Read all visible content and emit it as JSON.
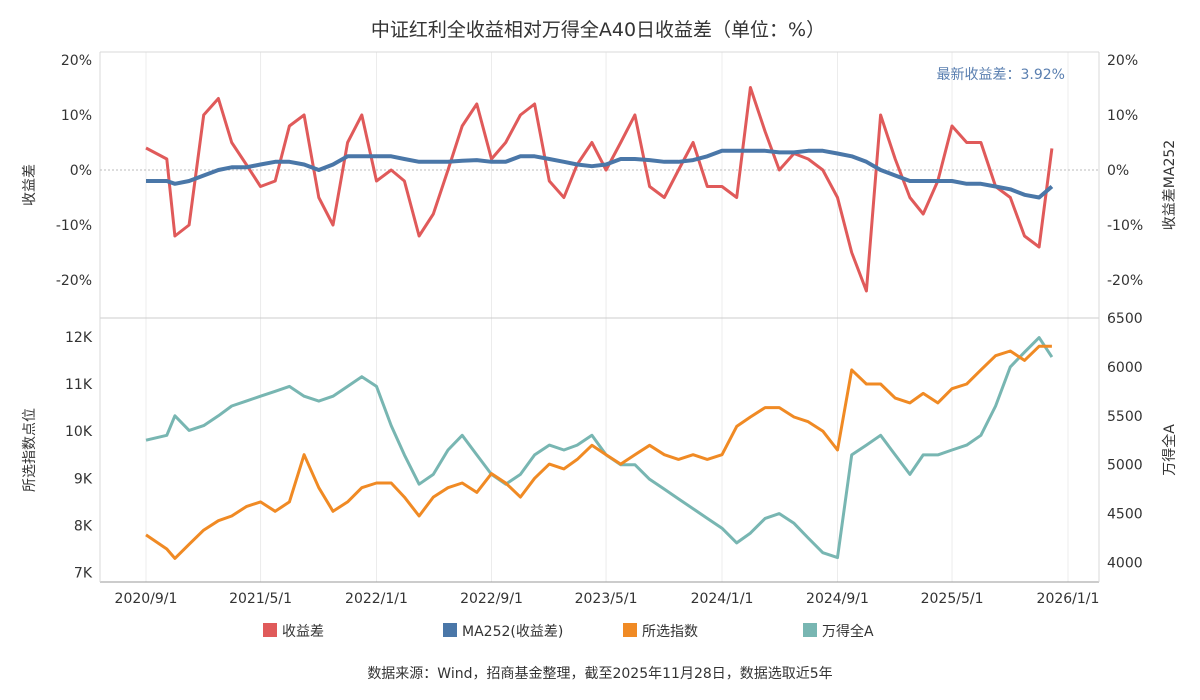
{
  "title": "中证红利全收益相对万得全A40日收益差（单位：%）",
  "footnote": "数据来源：Wind，招商基金整理，截至2025年11月28日，数据选取近5年",
  "annotation": "最新收益差：3.92%",
  "colors": {
    "spread": "#e05a5a",
    "ma": "#4a77a8",
    "index": "#f08a24",
    "wind": "#78b6b2",
    "annotation": "#5a7fb0"
  },
  "legend": [
    "收益差",
    "MA252(收益差)",
    "所选指数",
    "万得全A"
  ],
  "chart_data": [
    {
      "type": "line",
      "panel": "top",
      "ylabel_left": "收益差",
      "ylabel_right": "收益差MA252",
      "ylim": [
        -25,
        21
      ],
      "yticks": [
        20,
        10,
        0,
        -10,
        -20
      ],
      "ytick_labels": [
        "20%",
        "10%",
        "0%",
        "-10%",
        "-20%"
      ],
      "x_dates": [
        "2020-09-01",
        "2020-10-15",
        "2020-11-01",
        "2020-12-01",
        "2021-01-01",
        "2021-02-01",
        "2021-03-01",
        "2021-04-01",
        "2021-05-01",
        "2021-06-01",
        "2021-07-01",
        "2021-08-01",
        "2021-09-01",
        "2021-10-01",
        "2021-11-01",
        "2021-12-01",
        "2022-01-01",
        "2022-02-01",
        "2022-03-01",
        "2022-04-01",
        "2022-05-01",
        "2022-06-01",
        "2022-07-01",
        "2022-08-01",
        "2022-09-01",
        "2022-10-01",
        "2022-11-01",
        "2022-12-01",
        "2023-01-01",
        "2023-02-01",
        "2023-03-01",
        "2023-04-01",
        "2023-05-01",
        "2023-06-01",
        "2023-07-01",
        "2023-08-01",
        "2023-09-01",
        "2023-10-01",
        "2023-11-01",
        "2023-12-01",
        "2024-01-01",
        "2024-02-01",
        "2024-03-01",
        "2024-04-01",
        "2024-05-01",
        "2024-06-01",
        "2024-07-01",
        "2024-08-01",
        "2024-09-01",
        "2024-10-01",
        "2024-11-01",
        "2024-12-01",
        "2025-01-01",
        "2025-02-01",
        "2025-03-01",
        "2025-04-01",
        "2025-05-01",
        "2025-06-01",
        "2025-07-01",
        "2025-08-01",
        "2025-09-01",
        "2025-10-01",
        "2025-11-01",
        "2025-11-28"
      ],
      "series": [
        {
          "name": "收益差",
          "axis": "left",
          "values": [
            4,
            2,
            -12,
            -10,
            10,
            13,
            5,
            1,
            -3,
            -2,
            8,
            10,
            -5,
            -10,
            5,
            10,
            -2,
            0,
            -2,
            -12,
            -8,
            0,
            8,
            12,
            2,
            5,
            10,
            12,
            -2,
            -5,
            1,
            5,
            0,
            5,
            10,
            -3,
            -5,
            0,
            5,
            -3,
            -3,
            -5,
            15,
            7,
            0,
            3,
            2,
            0,
            -5,
            -15,
            -22,
            10,
            2,
            -5,
            -8,
            -2,
            8,
            5,
            5,
            -3,
            -5,
            -12,
            -14,
            3.92
          ]
        },
        {
          "name": "MA252(收益差)",
          "axis": "right",
          "values": [
            -2,
            -2,
            -2.5,
            -2,
            -1,
            0,
            0.5,
            0.5,
            1,
            1.5,
            1.5,
            1,
            0,
            1,
            2.5,
            2.5,
            2.5,
            2.5,
            2,
            1.5,
            1.5,
            1.5,
            1.7,
            1.8,
            1.5,
            1.5,
            2.5,
            2.5,
            2,
            1.5,
            1,
            0.7,
            1,
            2,
            2,
            1.8,
            1.5,
            1.5,
            1.8,
            2.5,
            3.5,
            3.5,
            3.5,
            3.5,
            3.2,
            3.2,
            3.5,
            3.5,
            3,
            2.5,
            1.5,
            0,
            -1,
            -2,
            -2,
            -2,
            -2,
            -2.5,
            -2.5,
            -3,
            -3.5,
            -4.5,
            -5,
            -3
          ]
        }
      ]
    },
    {
      "type": "line",
      "panel": "bottom",
      "ylabel_left": "所选指数点位",
      "ylabel_right": "万得全A",
      "ylim_left": [
        6800,
        12400
      ],
      "ylim_right": [
        3800,
        6500
      ],
      "yticks_left": [
        12000,
        11000,
        10000,
        9000,
        8000,
        7000
      ],
      "ytick_labels_left": [
        "12K",
        "11K",
        "10K",
        "9K",
        "8K",
        "7K"
      ],
      "yticks_right": [
        6500,
        6000,
        5500,
        5000,
        4500,
        4000
      ],
      "ytick_labels_right": [
        "6500",
        "6000",
        "5500",
        "5000",
        "4500",
        "4000"
      ],
      "xtick_labels": [
        "2020/9/1",
        "2021/5/1",
        "2022/1/1",
        "2022/9/1",
        "2023/5/1",
        "2024/1/1",
        "2024/9/1",
        "2025/5/1",
        "2026/1/1"
      ],
      "x_dates": [
        "2020-09-01",
        "2020-10-15",
        "2020-11-01",
        "2020-12-01",
        "2021-01-01",
        "2021-02-01",
        "2021-03-01",
        "2021-04-01",
        "2021-05-01",
        "2021-06-01",
        "2021-07-01",
        "2021-08-01",
        "2021-09-01",
        "2021-10-01",
        "2021-11-01",
        "2021-12-01",
        "2022-01-01",
        "2022-02-01",
        "2022-03-01",
        "2022-04-01",
        "2022-05-01",
        "2022-06-01",
        "2022-07-01",
        "2022-08-01",
        "2022-09-01",
        "2022-10-01",
        "2022-11-01",
        "2022-12-01",
        "2023-01-01",
        "2023-02-01",
        "2023-03-01",
        "2023-04-01",
        "2023-05-01",
        "2023-06-01",
        "2023-07-01",
        "2023-08-01",
        "2023-09-01",
        "2023-10-01",
        "2023-11-01",
        "2023-12-01",
        "2024-01-01",
        "2024-02-01",
        "2024-03-01",
        "2024-04-01",
        "2024-05-01",
        "2024-06-01",
        "2024-07-01",
        "2024-08-01",
        "2024-09-01",
        "2024-10-01",
        "2024-11-01",
        "2024-12-01",
        "2025-01-01",
        "2025-02-01",
        "2025-03-01",
        "2025-04-01",
        "2025-05-01",
        "2025-06-01",
        "2025-07-01",
        "2025-08-01",
        "2025-09-01",
        "2025-10-01",
        "2025-11-01",
        "2025-11-28"
      ],
      "series": [
        {
          "name": "所选指数",
          "axis": "left",
          "values": [
            7800,
            7500,
            7300,
            7600,
            7900,
            8100,
            8200,
            8400,
            8500,
            8300,
            8500,
            9500,
            8800,
            8300,
            8500,
            8800,
            8900,
            8900,
            8600,
            8200,
            8600,
            8800,
            8900,
            8700,
            9100,
            8900,
            8600,
            9000,
            9300,
            9200,
            9400,
            9700,
            9500,
            9300,
            9500,
            9700,
            9500,
            9400,
            9500,
            9400,
            9500,
            10100,
            10300,
            10500,
            10500,
            10300,
            10200,
            10000,
            9600,
            11300,
            11000,
            11000,
            10700,
            10600,
            10800,
            10600,
            10900,
            11000,
            11300,
            11600,
            11700,
            11500,
            11800,
            11800
          ]
        },
        {
          "name": "万得全A",
          "axis": "right",
          "values": [
            5250,
            5300,
            5500,
            5350,
            5400,
            5500,
            5600,
            5650,
            5700,
            5750,
            5800,
            5700,
            5650,
            5700,
            5800,
            5900,
            5800,
            5400,
            5100,
            4800,
            4900,
            5150,
            5300,
            5100,
            4900,
            4800,
            4900,
            5100,
            5200,
            5150,
            5200,
            5300,
            5100,
            5000,
            5000,
            4850,
            4750,
            4650,
            4550,
            4450,
            4350,
            4200,
            4300,
            4450,
            4500,
            4400,
            4250,
            4100,
            4050,
            5100,
            5200,
            5300,
            5100,
            4900,
            5100,
            5100,
            5150,
            5200,
            5300,
            5600,
            6000,
            6150,
            6300,
            6100
          ]
        }
      ]
    }
  ]
}
